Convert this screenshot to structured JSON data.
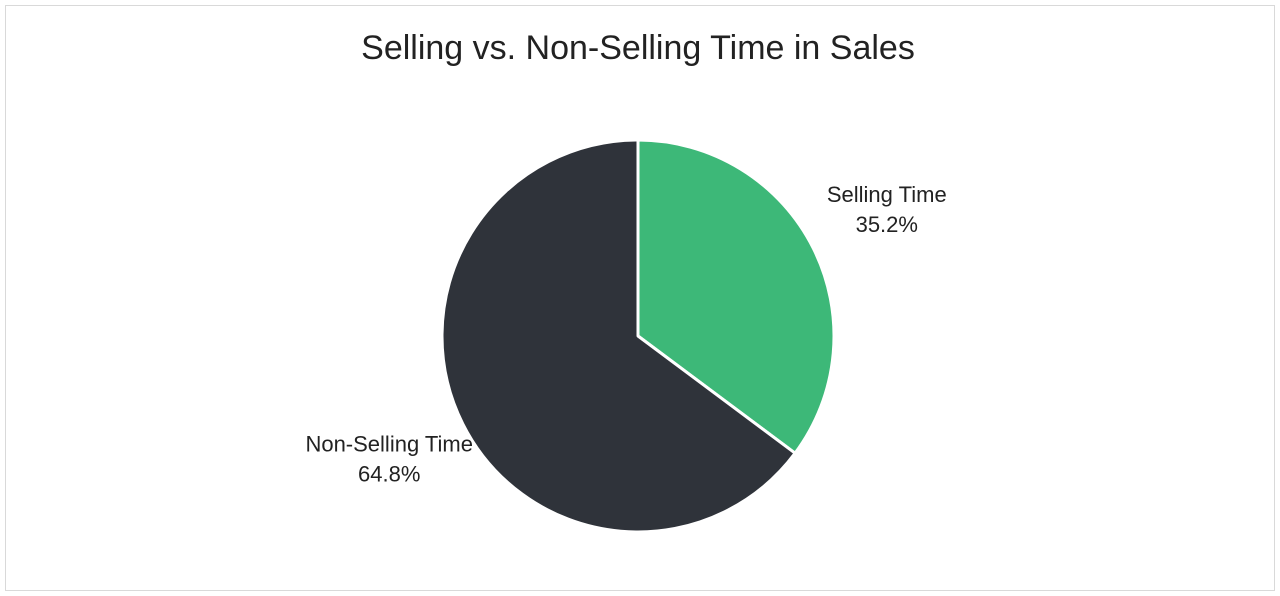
{
  "chart_data": {
    "type": "pie",
    "title": "Selling vs. Non-Selling Time in Sales",
    "categories": [
      "Selling Time",
      "Non-Selling Time"
    ],
    "values": [
      35.2,
      64.8
    ],
    "value_labels": [
      "35.2%",
      "64.8%"
    ],
    "colors": [
      "#3db878",
      "#2f333a"
    ]
  }
}
